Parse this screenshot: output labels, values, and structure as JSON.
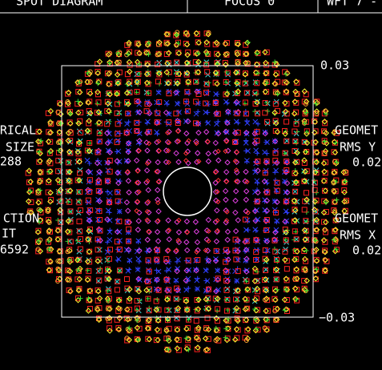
{
  "header": {
    "title": "SPOT DIAGRAM",
    "focus": "FOCUS 0",
    "wavelength": "WFT 7 -"
  },
  "left_labels": [
    "RICAL",
    "SIZE",
    "288",
    "CTION",
    "IT",
    "6592"
  ],
  "right_labels": [
    "GEOMET",
    "RMS Y",
    "0.02",
    "GEOMET",
    "RMS X",
    "0.02"
  ],
  "scale": {
    "top": "0.03",
    "bottom": "−0.03"
  }
}
